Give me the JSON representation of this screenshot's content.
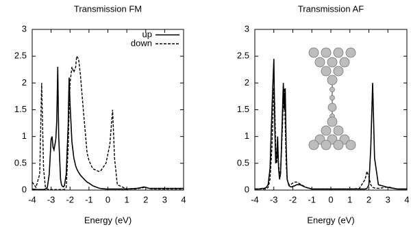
{
  "chart_data": [
    {
      "type": "line",
      "title": "Transmission FM",
      "x_label": "Energy  (eV)",
      "x": [
        -4,
        -3.8,
        -3.6,
        -3.5,
        -3.4,
        -3.3,
        -3.2,
        -3.1,
        -3.0,
        -2.95,
        -2.9,
        -2.85,
        -2.8,
        -2.75,
        -2.7,
        -2.65,
        -2.6,
        -2.5,
        -2.45,
        -2.4,
        -2.35,
        -2.3,
        -2.2,
        -2.1,
        -2.05,
        -2.0,
        -1.9,
        -1.8,
        -1.7,
        -1.65,
        -1.55,
        -1.45,
        -1.3,
        -1.1,
        -1.0,
        -0.8,
        -0.5,
        -0.4,
        -0.1,
        0.1,
        0.25,
        0.35,
        0.5,
        1.0,
        1.5,
        1.8,
        1.9,
        2.0,
        2.1,
        2.2,
        2.3,
        2.5,
        3.0,
        3.5,
        4.0
      ],
      "series": [
        {
          "name": "up",
          "color": "#000000",
          "style": "solid",
          "values": [
            0.02,
            0.01,
            0.01,
            0.01,
            0.01,
            0.02,
            0.05,
            0.3,
            0.95,
            1.0,
            0.8,
            0.75,
            0.85,
            0.95,
            1.3,
            2.3,
            1.0,
            0.2,
            0.1,
            0.07,
            0.06,
            0.08,
            0.3,
            1.2,
            2.1,
            1.6,
            0.9,
            0.6,
            0.45,
            0.4,
            0.33,
            0.28,
            0.22,
            0.15,
            0.13,
            0.08,
            0.04,
            0.03,
            0.02,
            0.02,
            0.02,
            0.02,
            0.02,
            0.02,
            0.03,
            0.05,
            0.06,
            0.05,
            0.04,
            0.03,
            0.03,
            0.03,
            0.03,
            0.03,
            0.03
          ]
        },
        {
          "name": "down",
          "color": "#000000",
          "style": "dashed",
          "values": [
            0.15,
            0.05,
            0.3,
            2.0,
            0.4,
            0.05,
            0.02,
            0.01,
            0.01,
            0.01,
            0.01,
            0.01,
            0.01,
            0.01,
            0.01,
            0.01,
            0.01,
            0.01,
            0.01,
            0.01,
            0.01,
            0.01,
            0.05,
            0.8,
            1.5,
            2.0,
            2.3,
            2.2,
            2.3,
            2.5,
            2.45,
            2.15,
            1.5,
            0.7,
            0.55,
            0.4,
            0.35,
            0.35,
            0.5,
            0.85,
            1.5,
            0.6,
            0.1,
            0.02,
            0.02,
            0.04,
            0.05,
            0.05,
            0.04,
            0.03,
            0.02,
            0.02,
            0.02,
            0.02,
            0.02
          ]
        }
      ],
      "xlim": [
        -4,
        4
      ],
      "ylim": [
        0,
        3
      ],
      "xticks": [
        -4,
        -3,
        -2,
        -1,
        0,
        1,
        2,
        3,
        4
      ],
      "yticks": [
        0,
        0.5,
        1,
        1.5,
        2,
        2.5,
        3
      ],
      "grid": false,
      "legend": "top-right"
    },
    {
      "type": "line",
      "title": "Transmission AF",
      "x_label": "Energy  (eV)",
      "x": [
        -4,
        -3.8,
        -3.6,
        -3.5,
        -3.4,
        -3.3,
        -3.2,
        -3.1,
        -3.0,
        -2.95,
        -2.9,
        -2.85,
        -2.8,
        -2.75,
        -2.7,
        -2.65,
        -2.6,
        -2.5,
        -2.45,
        -2.4,
        -2.35,
        -2.3,
        -2.2,
        -2.1,
        -2.05,
        -2.0,
        -1.9,
        -1.8,
        -1.7,
        -1.65,
        -1.55,
        -1.45,
        -1.3,
        -1.1,
        -1.0,
        -0.8,
        -0.5,
        -0.4,
        -0.1,
        0.1,
        0.25,
        0.35,
        0.5,
        1.0,
        1.5,
        1.8,
        1.9,
        2.0,
        2.1,
        2.2,
        2.3,
        2.5,
        3.0,
        3.5,
        4.0
      ],
      "series": [
        {
          "color": "#000000",
          "style": "solid",
          "values": [
            0.02,
            0.02,
            0.03,
            0.03,
            0.05,
            0.1,
            0.4,
            1.5,
            2.45,
            1.2,
            0.5,
            0.6,
            1.0,
            0.4,
            0.2,
            0.3,
            0.8,
            2.0,
            1.5,
            1.9,
            0.8,
            0.2,
            0.08,
            0.06,
            0.06,
            0.07,
            0.08,
            0.1,
            0.1,
            0.1,
            0.09,
            0.07,
            0.05,
            0.03,
            0.02,
            0.02,
            0.02,
            0.02,
            0.02,
            0.02,
            0.02,
            0.02,
            0.02,
            0.02,
            0.02,
            0.02,
            0.03,
            0.1,
            0.8,
            2.0,
            0.6,
            0.1,
            0.05,
            0.02,
            0.02
          ]
        },
        {
          "color": "#000000",
          "style": "dashed",
          "values": [
            0.02,
            0.02,
            0.02,
            0.02,
            0.02,
            0.05,
            0.2,
            0.8,
            1.9,
            1.6,
            0.8,
            0.5,
            0.7,
            0.5,
            0.3,
            0.3,
            0.7,
            1.6,
            1.9,
            1.2,
            0.5,
            0.2,
            0.1,
            0.1,
            0.12,
            0.13,
            0.15,
            0.15,
            0.13,
            0.12,
            0.1,
            0.08,
            0.05,
            0.03,
            0.02,
            0.02,
            0.02,
            0.02,
            0.02,
            0.02,
            0.02,
            0.02,
            0.02,
            0.02,
            0.03,
            0.2,
            0.35,
            0.25,
            0.1,
            0.05,
            0.04,
            0.03,
            0.06,
            0.02,
            0.02
          ]
        }
      ],
      "xlim": [
        -4,
        4
      ],
      "ylim": [
        0,
        3
      ],
      "xticks": [
        -4,
        -3,
        -2,
        -1,
        0,
        1,
        2,
        3,
        4
      ],
      "yticks": [
        0,
        0.5,
        1,
        1.5,
        2,
        2.5,
        3
      ],
      "grid": false
    }
  ]
}
